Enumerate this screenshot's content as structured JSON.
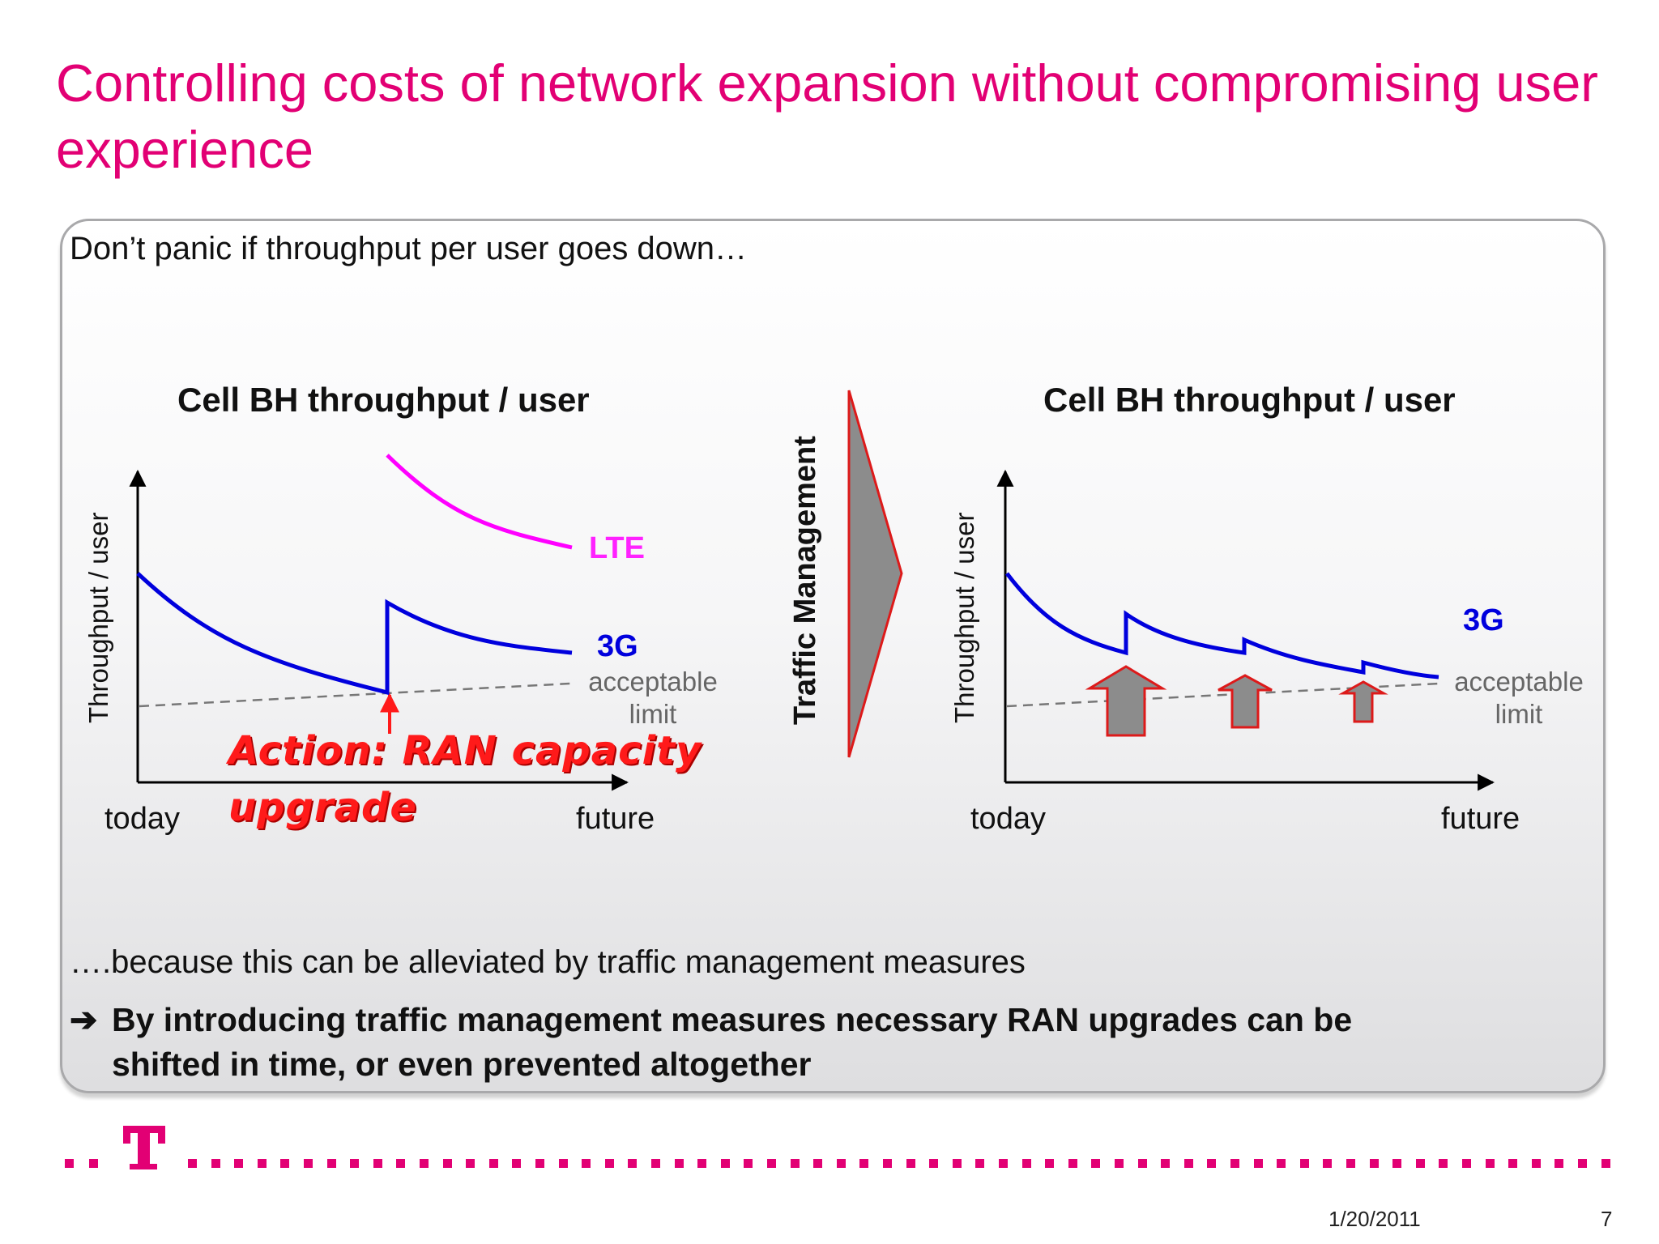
{
  "slide": {
    "title": "Controlling costs of network expansion without compromising user experience",
    "intro": "Don’t panic if throughput per user goes down…",
    "because": "….because this can be alleviated by traffic management measures",
    "conclusion_arrow": "➔",
    "conclusion_line1": "By introducing traffic management measures necessary RAN upgrades can be",
    "conclusion_line2": "shifted in time, or even prevented altogether",
    "middle_label": "Traffic Management",
    "footer_date": "1/20/2011",
    "footer_page": "7",
    "colors": {
      "magenta": "#e20074",
      "lte": "#ff00ff",
      "threeg": "#0000dd",
      "action": "#ff1a1a",
      "arrow_fill": "#8c8c8c"
    }
  },
  "left_chart": {
    "title": "Cell BH throughput / user",
    "ylabel": "Throughput / user",
    "x_start": "today",
    "x_end": "future",
    "series_lte": "LTE",
    "series_3g": "3G",
    "limit_line1": "acceptable",
    "limit_line2": "limit",
    "action_line1": "Action: RAN capacity",
    "action_line2": "upgrade"
  },
  "right_chart": {
    "title": "Cell BH throughput / user",
    "ylabel": "Throughput / user",
    "x_start": "today",
    "x_end": "future",
    "series_3g": "3G",
    "limit_line1": "acceptable",
    "limit_line2": "limit"
  }
}
